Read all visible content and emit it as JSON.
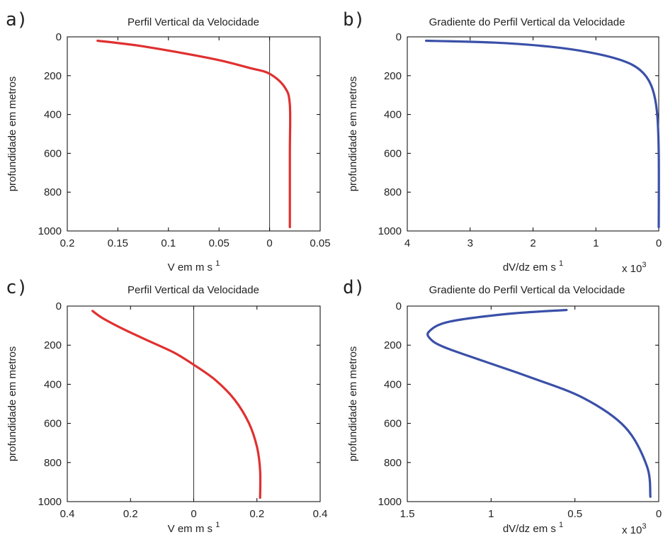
{
  "chart_data": [
    {
      "panel": "a)",
      "type": "line",
      "title": "Perfil Vertical da Velocidade",
      "xlabel": "V em m s",
      "xlabel_sup": "1",
      "ylabel": "profundidade em metros",
      "xlim": [
        0.2,
        -0.05
      ],
      "ylim": [
        0,
        1000
      ],
      "y_inverted": true,
      "xticks": [
        "0.2",
        "0.15",
        "0.1",
        "0.05",
        "0",
        "0.05"
      ],
      "xtick_values": [
        0.2,
        0.15,
        0.1,
        0.05,
        0,
        -0.05
      ],
      "yticks": [
        "0",
        "200",
        "400",
        "600",
        "800",
        "1000"
      ],
      "ytick_values": [
        0,
        200,
        400,
        600,
        800,
        1000
      ],
      "zero_line": true,
      "color": "#e03030",
      "series": [
        {
          "x": [
            0.17,
            0.13,
            0.09,
            0.05,
            0.02,
            0.0,
            -0.015,
            -0.02,
            -0.02,
            -0.02
          ],
          "y": [
            20,
            45,
            80,
            120,
            160,
            190,
            260,
            350,
            600,
            980
          ]
        }
      ]
    },
    {
      "panel": "b)",
      "type": "line",
      "title": "Gradiente do Perfil Vertical da Velocidade",
      "xlabel": "dV/dz em s",
      "xlabel_sup": "1",
      "scale_note": "x 10",
      "scale_note_sup": "3",
      "ylabel": "profundidade em metros",
      "xlim": [
        4,
        0
      ],
      "ylim": [
        0,
        1000
      ],
      "y_inverted": true,
      "xticks": [
        "4",
        "3",
        "2",
        "1",
        "0"
      ],
      "xtick_values": [
        4,
        3,
        2,
        1,
        0
      ],
      "yticks": [
        "0",
        "200",
        "400",
        "600",
        "800",
        "1000"
      ],
      "ytick_values": [
        0,
        200,
        400,
        600,
        800,
        1000
      ],
      "zero_line": false,
      "color": "#3a50a8",
      "series": [
        {
          "x": [
            3.7,
            2.6,
            1.75,
            1.1,
            0.6,
            0.3,
            0.12,
            0.03,
            0.0,
            0.0
          ],
          "y": [
            20,
            30,
            50,
            80,
            120,
            170,
            250,
            380,
            600,
            980
          ]
        }
      ]
    },
    {
      "panel": "c)",
      "type": "line",
      "title": "Perfil Vertical da Velocidade",
      "xlabel": "V em m s",
      "xlabel_sup": "1",
      "ylabel": "profundidade em metros",
      "xlim": [
        0.4,
        -0.4
      ],
      "ylim": [
        0,
        1000
      ],
      "y_inverted": true,
      "xticks": [
        "0.4",
        "0.2",
        "0",
        "0.2",
        "0.4"
      ],
      "xtick_values": [
        0.4,
        0.2,
        0,
        -0.2,
        -0.4
      ],
      "yticks": [
        "0",
        "200",
        "400",
        "600",
        "800",
        "1000"
      ],
      "ytick_values": [
        0,
        200,
        400,
        600,
        800,
        1000
      ],
      "zero_line": true,
      "color": "#e03030",
      "series": [
        {
          "x": [
            0.32,
            0.29,
            0.22,
            0.14,
            0.06,
            0.0,
            -0.07,
            -0.13,
            -0.175,
            -0.2,
            -0.21,
            -0.21
          ],
          "y": [
            25,
            60,
            120,
            180,
            240,
            300,
            380,
            480,
            600,
            720,
            840,
            980
          ]
        }
      ]
    },
    {
      "panel": "d)",
      "type": "line",
      "title": "Gradiente do Perfil Vertical da Velocidade",
      "xlabel": "dV/dz em s",
      "xlabel_sup": "1",
      "scale_note": "x 10",
      "scale_note_sup": "3",
      "ylabel": "profundidade em metros",
      "xlim": [
        1.5,
        0
      ],
      "ylim": [
        0,
        1000
      ],
      "y_inverted": true,
      "xticks": [
        "1.5",
        "1",
        "0.5",
        "0"
      ],
      "xtick_values": [
        1.5,
        1,
        0.5,
        0
      ],
      "yticks": [
        "0",
        "200",
        "400",
        "600",
        "800",
        "1000"
      ],
      "ytick_values": [
        0,
        200,
        400,
        600,
        800,
        1000
      ],
      "zero_line": false,
      "color": "#3a50a8",
      "series": [
        {
          "x": [
            0.55,
            0.9,
            1.25,
            1.37,
            1.36,
            1.28,
            1.05,
            0.78,
            0.45,
            0.2,
            0.07,
            0.05
          ],
          "y": [
            20,
            40,
            80,
            130,
            170,
            210,
            280,
            360,
            470,
            620,
            820,
            975
          ]
        }
      ]
    }
  ]
}
